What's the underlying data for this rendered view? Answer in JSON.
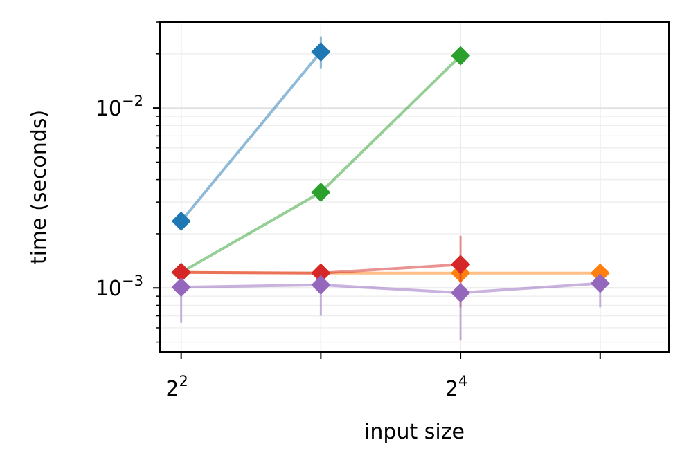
{
  "chart_data": {
    "type": "line",
    "xlabel": "input size",
    "ylabel": "time (seconds)",
    "x_scale": "log2",
    "y_scale": "log10",
    "xlim": [
      3.6,
      45
    ],
    "ylim": [
      0.00044,
      0.03
    ],
    "grid": true,
    "x_ticks": [
      {
        "value": 4,
        "label_base": "2",
        "label_exp": "2"
      },
      {
        "value": 8,
        "label_base": "",
        "label_exp": ""
      },
      {
        "value": 16,
        "label_base": "2",
        "label_exp": "4"
      },
      {
        "value": 32,
        "label_base": "",
        "label_exp": ""
      }
    ],
    "y_ticks": [
      {
        "value": 0.001,
        "label_base": "10",
        "label_exp": "−3"
      },
      {
        "value": 0.01,
        "label_base": "10",
        "label_exp": "−2"
      }
    ],
    "series": [
      {
        "color": "#1f77b4",
        "x": [
          4,
          8
        ],
        "y": [
          0.00235,
          0.0205
        ],
        "err_low": [
          0.00225,
          0.0165
        ],
        "err_high": [
          0.00245,
          0.025
        ]
      },
      {
        "color": "#ff7f0e",
        "x": [
          4,
          8,
          16,
          32
        ],
        "y": [
          0.00122,
          0.00121,
          0.00121,
          0.00121
        ],
        "err_low": [
          0.00118,
          0.00117,
          0.00117,
          0.00117
        ],
        "err_high": [
          0.00126,
          0.00125,
          0.00125,
          0.00125
        ]
      },
      {
        "color": "#2ca02c",
        "x": [
          4,
          8,
          16
        ],
        "y": [
          0.00122,
          0.0034,
          0.0195
        ],
        "err_low": [
          0.00118,
          0.00325,
          0.0188
        ],
        "err_high": [
          0.00126,
          0.00355,
          0.0202
        ]
      },
      {
        "color": "#d62728",
        "x": [
          4,
          8,
          16
        ],
        "y": [
          0.00122,
          0.00121,
          0.00135
        ],
        "err_low": [
          0.00117,
          0.00116,
          0.00078
        ],
        "err_high": [
          0.00127,
          0.00126,
          0.00195
        ]
      },
      {
        "color": "#9467bd",
        "x": [
          4,
          8,
          16,
          32
        ],
        "y": [
          0.00101,
          0.00104,
          0.00094,
          0.00106
        ],
        "err_low": [
          0.00064,
          0.0007,
          0.00051,
          0.00078
        ],
        "err_high": [
          0.00112,
          0.00118,
          0.00105,
          0.00113
        ]
      }
    ]
  }
}
